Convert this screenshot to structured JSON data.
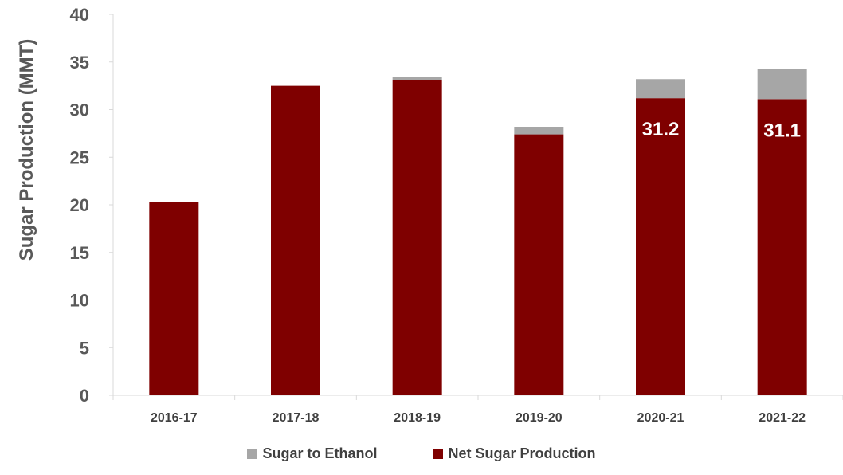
{
  "chart_data": {
    "type": "bar",
    "stacked": true,
    "categories": [
      "2016-17",
      "2017-18",
      "2018-19",
      "2019-20",
      "2020-21",
      "2021-22"
    ],
    "series": [
      {
        "name": "Net Sugar Production",
        "values": [
          20.3,
          32.5,
          33.1,
          27.4,
          31.2,
          31.1
        ],
        "color": "#7f0000"
      },
      {
        "name": "Sugar to Ethanol",
        "values": [
          0,
          0,
          0.3,
          0.8,
          2.0,
          3.2
        ],
        "color": "#a6a6a6"
      }
    ],
    "data_labels": [
      {
        "category": "2020-21",
        "text": "31.2"
      },
      {
        "category": "2021-22",
        "text": "31.1"
      }
    ],
    "ylabel": "Sugar Production (MMT)",
    "xlabel": "",
    "ylim": [
      0,
      40
    ],
    "yticks": [
      0,
      5,
      10,
      15,
      20,
      25,
      30,
      35,
      40
    ],
    "legend_position": "bottom",
    "legend_order": [
      "Sugar to Ethanol",
      "Net Sugar Production"
    ],
    "grid": false
  }
}
